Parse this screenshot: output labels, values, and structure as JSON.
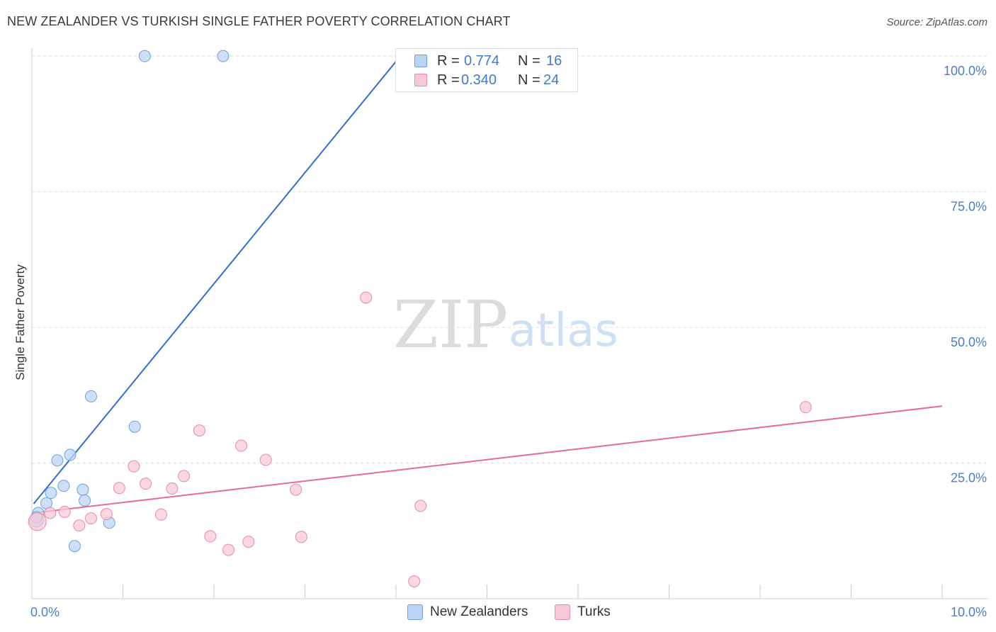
{
  "header": {
    "title": "NEW ZEALANDER VS TURKISH SINGLE FATHER POVERTY CORRELATION CHART",
    "source": "Source: ZipAtlas.com"
  },
  "watermark": {
    "zip": "ZIP",
    "atlas": "atlas"
  },
  "legend": {
    "r_label": "R =",
    "n_label": "N =",
    "entries": [
      {
        "r": "0.774",
        "n": "16"
      },
      {
        "r": "0.340",
        "n": "24"
      }
    ]
  },
  "colors": {
    "blue_fill": "#bcd5f5",
    "blue_stroke": "#6f9fdc",
    "blue_line": "#2e6fcf",
    "pink_fill": "#f8c9d7",
    "pink_stroke": "#e98aa8",
    "pink_line": "#e26e98",
    "grid": "#dddddd",
    "tick": "#4a7fc8"
  },
  "chart_data": {
    "type": "scatter",
    "title": "NEW ZEALANDER VS TURKISH SINGLE FATHER POVERTY CORRELATION CHART",
    "xlabel": "",
    "ylabel": "Single Father Poverty",
    "xlim": [
      0,
      10
    ],
    "ylim": [
      0,
      102.5
    ],
    "x_tick_labels": [
      "0.0%",
      "10.0%"
    ],
    "y_ticks": [
      25,
      50,
      75,
      100
    ],
    "y_tick_labels": [
      "25.0%",
      "50.0%",
      "75.0%",
      "100.0%"
    ],
    "legend_position": "top-center",
    "series": [
      {
        "name": "New Zealanders",
        "color": "#6f9fdc",
        "r": 0.774,
        "n": 16,
        "points": [
          {
            "x": 0.05,
            "y": 14.5,
            "size": 16
          },
          {
            "x": 0.07,
            "y": 15.8
          },
          {
            "x": 0.16,
            "y": 17.6
          },
          {
            "x": 0.21,
            "y": 19.5
          },
          {
            "x": 0.28,
            "y": 25.5
          },
          {
            "x": 0.35,
            "y": 20.8
          },
          {
            "x": 0.42,
            "y": 26.5
          },
          {
            "x": 0.47,
            "y": 9.7
          },
          {
            "x": 0.56,
            "y": 20.1
          },
          {
            "x": 0.58,
            "y": 18.1
          },
          {
            "x": 0.65,
            "y": 37.3
          },
          {
            "x": 0.85,
            "y": 14.0
          },
          {
            "x": 1.13,
            "y": 31.7
          },
          {
            "x": 1.24,
            "y": 100.0
          },
          {
            "x": 2.1,
            "y": 100.0
          },
          {
            "x": 0.05,
            "y": 15.0
          }
        ],
        "trend": {
          "x0": 0.02,
          "y0": 17.5,
          "x1": 4.0,
          "y1": 99.0
        }
      },
      {
        "name": "Turks",
        "color": "#e98aa8",
        "r": 0.34,
        "n": 24,
        "points": [
          {
            "x": 0.06,
            "y": 14.2,
            "size": 20
          },
          {
            "x": 0.2,
            "y": 15.8
          },
          {
            "x": 0.36,
            "y": 16.0
          },
          {
            "x": 0.52,
            "y": 13.5
          },
          {
            "x": 0.65,
            "y": 14.8
          },
          {
            "x": 0.82,
            "y": 15.6
          },
          {
            "x": 0.96,
            "y": 20.4
          },
          {
            "x": 1.12,
            "y": 24.4
          },
          {
            "x": 1.25,
            "y": 21.2
          },
          {
            "x": 1.42,
            "y": 15.5
          },
          {
            "x": 1.54,
            "y": 20.3
          },
          {
            "x": 1.67,
            "y": 22.6
          },
          {
            "x": 1.84,
            "y": 31.0
          },
          {
            "x": 1.96,
            "y": 11.5
          },
          {
            "x": 2.16,
            "y": 9.0
          },
          {
            "x": 2.3,
            "y": 28.2
          },
          {
            "x": 2.38,
            "y": 10.5
          },
          {
            "x": 2.57,
            "y": 25.6
          },
          {
            "x": 2.9,
            "y": 20.1
          },
          {
            "x": 2.96,
            "y": 11.4
          },
          {
            "x": 3.67,
            "y": 55.5
          },
          {
            "x": 4.2,
            "y": 3.2
          },
          {
            "x": 4.27,
            "y": 17.1
          },
          {
            "x": 8.5,
            "y": 35.3
          }
        ],
        "trend": {
          "x0": 0.02,
          "y0": 15.8,
          "x1": 10.0,
          "y1": 35.5
        }
      }
    ]
  }
}
